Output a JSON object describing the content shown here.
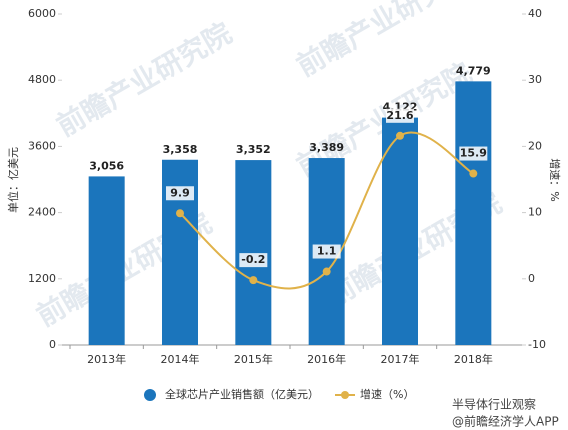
{
  "chart_data": {
    "type": "bar-line",
    "categories": [
      "2013年",
      "2014年",
      "2015年",
      "2016年",
      "2017年",
      "2018年"
    ],
    "series": [
      {
        "name": "全球芯片产业销售额（亿美元）",
        "type": "bar",
        "color": "#1b75bc",
        "values": [
          3056,
          3358,
          3352,
          3389,
          4122,
          4779
        ],
        "value_labels": [
          "3,056",
          "3,358",
          "3,352",
          "3,389",
          "4,122",
          "4,779"
        ]
      },
      {
        "name": "增速（%）",
        "type": "line",
        "axis": "y2",
        "color": "#e0b24a",
        "values": [
          null,
          9.9,
          -0.2,
          1.1,
          21.6,
          15.9
        ]
      }
    ],
    "ylabel": "单位：亿美元",
    "y2label": "增速：%",
    "ylim": [
      0,
      6000
    ],
    "yticks": [
      0,
      1200,
      2400,
      3600,
      4800,
      6000
    ],
    "y2lim": [
      -10,
      40
    ],
    "y2ticks": [
      -10,
      0,
      10,
      20,
      30,
      40
    ],
    "legend": "bottom",
    "watermark": "前瞻产业研究院",
    "footer": [
      "半导体行业观察",
      "@前瞻经济学人APP"
    ]
  }
}
